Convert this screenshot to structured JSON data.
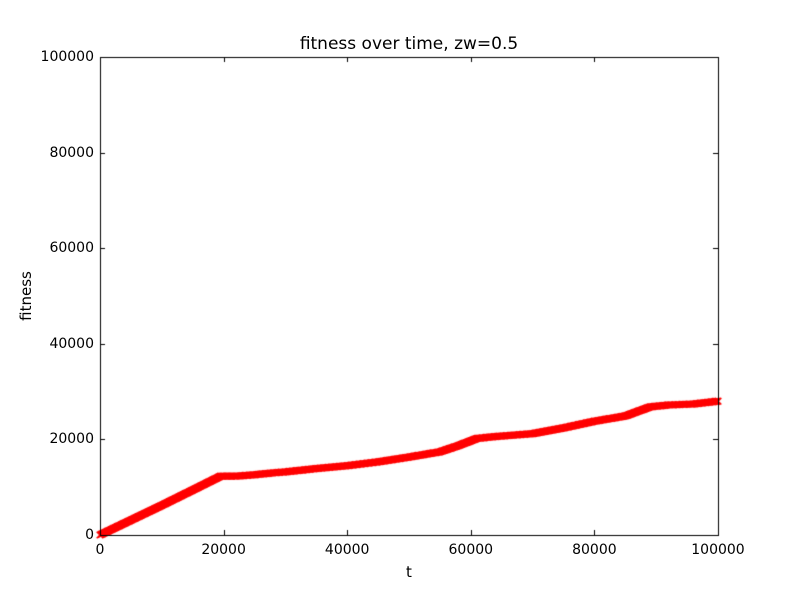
{
  "chart_data": {
    "type": "line",
    "title": "fitness over time, zw=0.5",
    "xlabel": "t",
    "ylabel": "fitness",
    "xlim": [
      0,
      100000
    ],
    "ylim": [
      0,
      100000
    ],
    "x_ticks": [
      0,
      20000,
      40000,
      60000,
      80000,
      100000
    ],
    "x_tick_labels": [
      "0",
      "20000",
      "40000",
      "60000",
      "80000",
      "100000"
    ],
    "y_ticks": [
      0,
      20000,
      40000,
      60000,
      80000,
      100000
    ],
    "y_tick_labels": [
      "0",
      "20000",
      "40000",
      "60000",
      "80000",
      "100000"
    ],
    "grid": false,
    "legend_position": "none",
    "axes_color": "#000000",
    "background_color": "#ffffff",
    "series": [
      {
        "name": "fitness",
        "color": "#ff0000",
        "marker": "x",
        "points": [
          [
            0,
            0
          ],
          [
            5000,
            3100
          ],
          [
            10000,
            6200
          ],
          [
            15000,
            9400
          ],
          [
            19500,
            12300
          ],
          [
            22000,
            12300
          ],
          [
            25000,
            12600
          ],
          [
            28000,
            13000
          ],
          [
            30000,
            13200
          ],
          [
            35000,
            13900
          ],
          [
            40000,
            14500
          ],
          [
            45000,
            15300
          ],
          [
            50000,
            16300
          ],
          [
            55000,
            17400
          ],
          [
            58000,
            18700
          ],
          [
            61000,
            20200
          ],
          [
            64000,
            20600
          ],
          [
            67000,
            20900
          ],
          [
            70000,
            21200
          ],
          [
            75000,
            22400
          ],
          [
            80000,
            23800
          ],
          [
            85000,
            24900
          ],
          [
            89000,
            26800
          ],
          [
            92000,
            27200
          ],
          [
            96000,
            27400
          ],
          [
            100000,
            28000
          ]
        ]
      }
    ]
  }
}
